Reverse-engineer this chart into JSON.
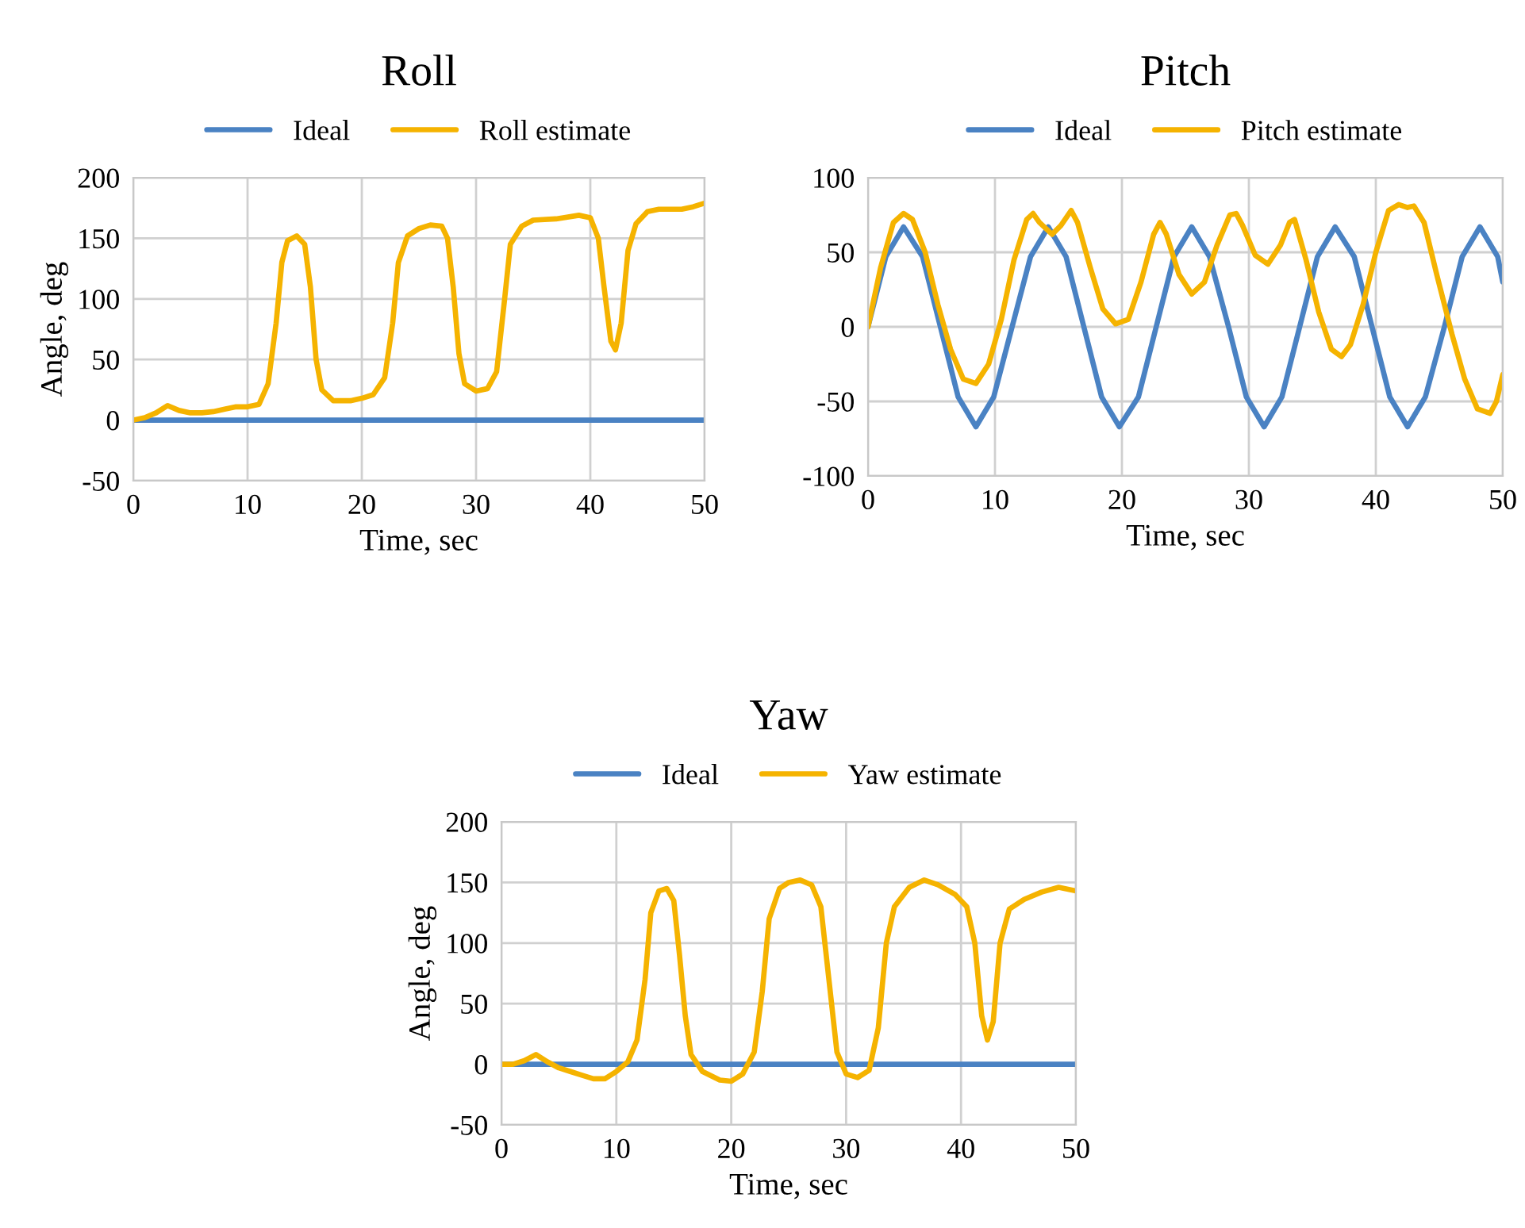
{
  "chart_data": [
    {
      "type": "line",
      "title": "Roll",
      "xlabel": "Time, sec",
      "ylabel": "Angle, deg",
      "xlim": [
        0,
        50
      ],
      "xticks": [
        0,
        10,
        20,
        30,
        40,
        50
      ],
      "ylim": [
        -50,
        200
      ],
      "yticks": [
        -50,
        0,
        50,
        100,
        150,
        200
      ],
      "grid": true,
      "legend": "top",
      "line_style": "solid",
      "marker": "none",
      "series": [
        {
          "name": "Ideal",
          "color": "#4a82c3",
          "x": [
            0,
            50
          ],
          "values": [
            0,
            0
          ]
        },
        {
          "name": "Roll estimate",
          "color": "#f5b300",
          "x": [
            0,
            1,
            2,
            3,
            4,
            5,
            6,
            7,
            8,
            9,
            10,
            11,
            11.8,
            12.5,
            13,
            13.5,
            14.3,
            15,
            15.5,
            16,
            16.5,
            17.5,
            19,
            20,
            21,
            22,
            22.7,
            23.2,
            24,
            25,
            26,
            27,
            27.5,
            28,
            28.5,
            29,
            30,
            31,
            31.8,
            32.5,
            33,
            34,
            35,
            37,
            39,
            40,
            40.7,
            41.2,
            41.8,
            42.2,
            42.7,
            43.3,
            44,
            45,
            46,
            48,
            49,
            50
          ],
          "values": [
            0,
            2,
            6,
            12,
            8,
            6,
            6,
            7,
            9,
            11,
            11,
            13,
            30,
            80,
            130,
            148,
            152,
            145,
            110,
            50,
            25,
            16,
            16,
            18,
            21,
            35,
            80,
            130,
            152,
            158,
            161,
            160,
            150,
            110,
            55,
            30,
            24,
            26,
            40,
            100,
            145,
            160,
            165,
            166,
            169,
            167,
            150,
            110,
            65,
            58,
            80,
            140,
            162,
            172,
            174,
            174,
            176,
            179
          ]
        }
      ]
    },
    {
      "type": "line",
      "title": "Pitch",
      "xlabel": "Time, sec",
      "xlim": [
        0,
        50
      ],
      "xticks": [
        0,
        10,
        20,
        30,
        40,
        50
      ],
      "ylim": [
        -100,
        100
      ],
      "yticks": [
        -100,
        -50,
        0,
        50,
        100
      ],
      "grid": true,
      "legend": "top",
      "line_style": "solid",
      "marker": "none",
      "series": [
        {
          "name": "Ideal",
          "color": "#4a82c3",
          "x": [
            0,
            1.4,
            2.8,
            4.3,
            5.7,
            7.1,
            8.5,
            9.9,
            11.35,
            12.8,
            14.2,
            15.6,
            17,
            18.4,
            19.8,
            21.3,
            22.7,
            24.1,
            25.5,
            26.9,
            28.4,
            29.8,
            31.2,
            32.6,
            34,
            35.4,
            36.8,
            38.3,
            39.7,
            41.1,
            42.5,
            43.9,
            45.4,
            46.8,
            48.2,
            49.6,
            50
          ],
          "values": [
            0,
            47,
            67,
            47,
            0,
            -47,
            -67,
            -47,
            0,
            47,
            67,
            47,
            0,
            -47,
            -67,
            -47,
            0,
            47,
            67,
            47,
            0,
            -47,
            -67,
            -47,
            0,
            47,
            67,
            47,
            0,
            -47,
            -67,
            -47,
            0,
            47,
            67,
            47,
            30
          ]
        },
        {
          "name": "Pitch estimate",
          "color": "#f5b300",
          "x": [
            0,
            1,
            2,
            2.8,
            3.5,
            4.5,
            5.5,
            6.5,
            7.5,
            8.5,
            9.5,
            10.5,
            11.5,
            12.5,
            13,
            13.5,
            14.5,
            15.2,
            16,
            16.5,
            17.5,
            18.5,
            19.5,
            20.5,
            21.5,
            22.5,
            23,
            23.5,
            24.5,
            25.5,
            26.5,
            27.5,
            28.5,
            29,
            29.5,
            30.5,
            31.5,
            32.5,
            33.2,
            33.6,
            34.5,
            35.5,
            36.5,
            37.3,
            38,
            39,
            40,
            41,
            41.8,
            42.5,
            43,
            43.8,
            44.8,
            46,
            47,
            48,
            49,
            49.5,
            50
          ],
          "values": [
            0,
            40,
            70,
            76,
            72,
            50,
            15,
            -15,
            -35,
            -38,
            -25,
            5,
            45,
            72,
            76,
            70,
            62,
            68,
            78,
            70,
            40,
            12,
            2,
            5,
            30,
            62,
            70,
            62,
            35,
            22,
            30,
            55,
            75,
            76,
            68,
            48,
            42,
            55,
            70,
            72,
            45,
            10,
            -15,
            -20,
            -12,
            15,
            50,
            78,
            82,
            80,
            81,
            70,
            35,
            -5,
            -35,
            -55,
            -58,
            -50,
            -32
          ]
        }
      ]
    },
    {
      "type": "line",
      "title": "Yaw",
      "xlabel": "Time, sec",
      "ylabel": "Angle, deg",
      "xlim": [
        0,
        50
      ],
      "xticks": [
        0,
        10,
        20,
        30,
        40,
        50
      ],
      "ylim": [
        -50,
        200
      ],
      "yticks": [
        -50,
        0,
        50,
        100,
        150,
        200
      ],
      "grid": true,
      "legend": "top",
      "line_style": "solid",
      "marker": "none",
      "series": [
        {
          "name": "Ideal",
          "color": "#4a82c3",
          "x": [
            0,
            50
          ],
          "values": [
            0,
            0
          ]
        },
        {
          "name": "Yaw estimate",
          "color": "#f5b300",
          "x": [
            0,
            1,
            2,
            3,
            4,
            5,
            6,
            7,
            8,
            9,
            10,
            11,
            11.8,
            12.5,
            13,
            13.7,
            14.4,
            15,
            15.5,
            16,
            16.5,
            17.5,
            19,
            20,
            21,
            22,
            22.7,
            23.3,
            24.2,
            25,
            26,
            27,
            27.8,
            28.5,
            29.2,
            30,
            31,
            32,
            32.8,
            33.5,
            34.2,
            35.5,
            36.8,
            38,
            39.5,
            40.5,
            41.2,
            41.8,
            42.3,
            42.8,
            43.4,
            44.2,
            45.5,
            47,
            48.5,
            50
          ],
          "values": [
            0,
            0,
            3,
            8,
            2,
            -3,
            -6,
            -9,
            -12,
            -12,
            -6,
            2,
            20,
            70,
            125,
            143,
            145,
            135,
            90,
            40,
            8,
            -6,
            -13,
            -14,
            -8,
            10,
            60,
            120,
            145,
            150,
            152,
            148,
            130,
            70,
            10,
            -8,
            -11,
            -5,
            30,
            100,
            130,
            146,
            152,
            148,
            140,
            130,
            100,
            40,
            20,
            35,
            100,
            128,
            136,
            142,
            146,
            143
          ]
        }
      ]
    }
  ]
}
